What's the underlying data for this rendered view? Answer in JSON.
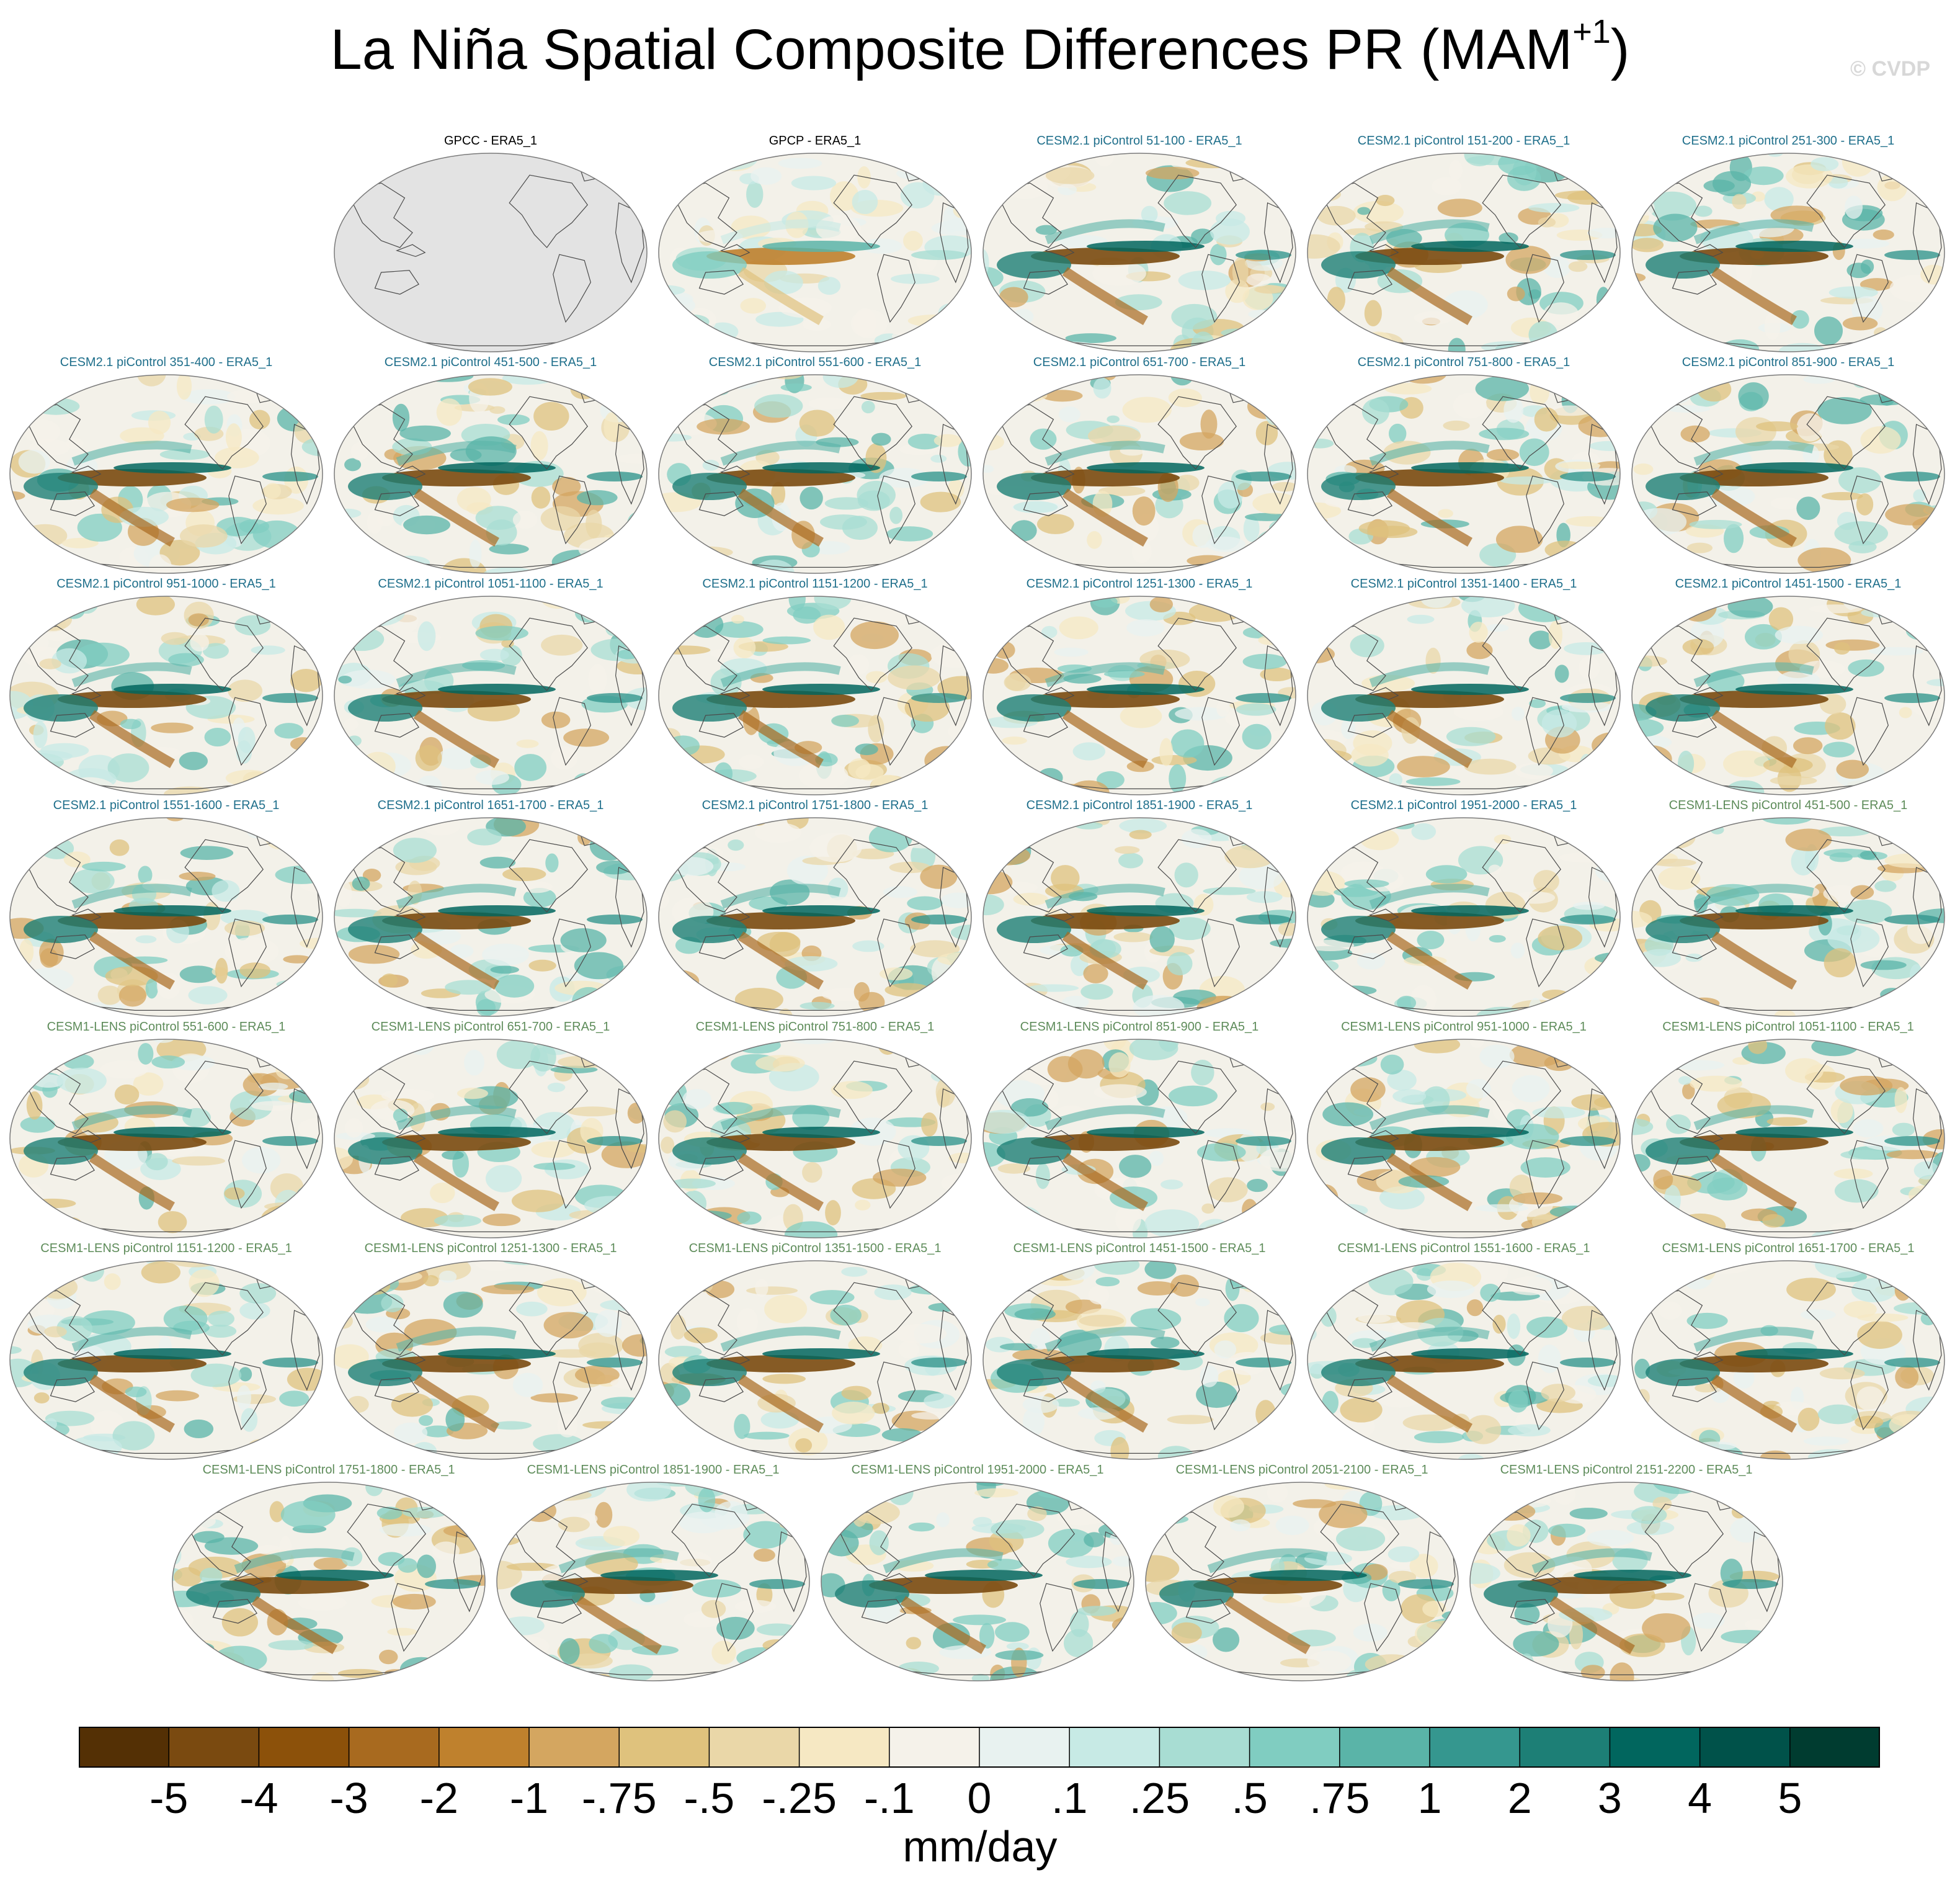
{
  "title": {
    "main": "La Niña Spatial Composite Differences PR (MAM",
    "superscript": "+1",
    "close": ")"
  },
  "watermark": "© CVDP",
  "colors": {
    "gpcp_group": "#000000",
    "cesm2_group": "#1f6f8b",
    "cesm1_group": "#5e8c5a",
    "missing_fill": "#e3e3e3",
    "coastline": "#4a4a4a"
  },
  "panels": [
    {
      "label": "GPCC - ERA5_1",
      "group": "obs",
      "blank": true
    },
    {
      "label": "GPCP - ERA5_1",
      "group": "obs"
    },
    {
      "label": "CESM2.1 piControl 51-100 - ERA5_1",
      "group": "cesm2"
    },
    {
      "label": "CESM2.1 piControl 151-200 - ERA5_1",
      "group": "cesm2"
    },
    {
      "label": "CESM2.1 piControl 251-300 - ERA5_1",
      "group": "cesm2"
    },
    {
      "label": "CESM2.1 piControl 351-400 - ERA5_1",
      "group": "cesm2"
    },
    {
      "label": "CESM2.1 piControl 451-500 - ERA5_1",
      "group": "cesm2"
    },
    {
      "label": "CESM2.1 piControl 551-600 - ERA5_1",
      "group": "cesm2"
    },
    {
      "label": "CESM2.1 piControl 651-700 - ERA5_1",
      "group": "cesm2"
    },
    {
      "label": "CESM2.1 piControl 751-800 - ERA5_1",
      "group": "cesm2"
    },
    {
      "label": "CESM2.1 piControl 851-900 - ERA5_1",
      "group": "cesm2"
    },
    {
      "label": "CESM2.1 piControl 951-1000 - ERA5_1",
      "group": "cesm2"
    },
    {
      "label": "CESM2.1 piControl 1051-1100 - ERA5_1",
      "group": "cesm2"
    },
    {
      "label": "CESM2.1 piControl 1151-1200 - ERA5_1",
      "group": "cesm2"
    },
    {
      "label": "CESM2.1 piControl 1251-1300 - ERA5_1",
      "group": "cesm2"
    },
    {
      "label": "CESM2.1 piControl 1351-1400 - ERA5_1",
      "group": "cesm2"
    },
    {
      "label": "CESM2.1 piControl 1451-1500 - ERA5_1",
      "group": "cesm2"
    },
    {
      "label": "CESM2.1 piControl 1551-1600 - ERA5_1",
      "group": "cesm2"
    },
    {
      "label": "CESM2.1 piControl 1651-1700 - ERA5_1",
      "group": "cesm2"
    },
    {
      "label": "CESM2.1 piControl 1751-1800 - ERA5_1",
      "group": "cesm2"
    },
    {
      "label": "CESM2.1 piControl 1851-1900 - ERA5_1",
      "group": "cesm2"
    },
    {
      "label": "CESM2.1 piControl 1951-2000 - ERA5_1",
      "group": "cesm2"
    },
    {
      "label": "CESM1-LENS piControl 451-500 - ERA5_1",
      "group": "cesm1"
    },
    {
      "label": "CESM1-LENS piControl 551-600 - ERA5_1",
      "group": "cesm1"
    },
    {
      "label": "CESM1-LENS piControl 651-700 - ERA5_1",
      "group": "cesm1"
    },
    {
      "label": "CESM1-LENS piControl 751-800 - ERA5_1",
      "group": "cesm1"
    },
    {
      "label": "CESM1-LENS piControl 851-900 - ERA5_1",
      "group": "cesm1"
    },
    {
      "label": "CESM1-LENS piControl 951-1000 - ERA5_1",
      "group": "cesm1"
    },
    {
      "label": "CESM1-LENS piControl 1051-1100 - ERA5_1",
      "group": "cesm1"
    },
    {
      "label": "CESM1-LENS piControl 1151-1200 - ERA5_1",
      "group": "cesm1"
    },
    {
      "label": "CESM1-LENS piControl 1251-1300 - ERA5_1",
      "group": "cesm1"
    },
    {
      "label": "CESM1-LENS piControl 1351-1500 - ERA5_1",
      "group": "cesm1"
    },
    {
      "label": "CESM1-LENS piControl 1451-1500 - ERA5_1",
      "group": "cesm1"
    },
    {
      "label": "CESM1-LENS piControl 1551-1600 - ERA5_1",
      "group": "cesm1"
    },
    {
      "label": "CESM1-LENS piControl 1651-1700 - ERA5_1",
      "group": "cesm1"
    },
    {
      "label": "CESM1-LENS piControl 1751-1800 - ERA5_1",
      "group": "cesm1"
    },
    {
      "label": "CESM1-LENS piControl 1851-1900 - ERA5_1",
      "group": "cesm1"
    },
    {
      "label": "CESM1-LENS piControl 1951-2000 - ERA5_1",
      "group": "cesm1"
    },
    {
      "label": "CESM1-LENS piControl 2051-2100 - ERA5_1",
      "group": "cesm1"
    },
    {
      "label": "CESM1-LENS piControl 2151-2200 - ERA5_1",
      "group": "cesm1"
    }
  ],
  "colorbar": {
    "tick_labels": [
      "-5",
      "-4",
      "-3",
      "-2",
      "-1",
      "-.75",
      "-.5",
      "-.25",
      "-.1",
      "0",
      ".1",
      ".25",
      ".5",
      ".75",
      "1",
      "2",
      "3",
      "4",
      "5"
    ],
    "colors": [
      "#543005",
      "#7a4a10",
      "#8c510a",
      "#a86a1f",
      "#bf812d",
      "#d4a660",
      "#dfc27d",
      "#ead7a8",
      "#f6e8c3",
      "#f5f2ea",
      "#e8f2f0",
      "#c7eae5",
      "#a8ddd3",
      "#80cdc1",
      "#5ab4a8",
      "#35978f",
      "#1d7f76",
      "#01665e",
      "#00524a",
      "#003c30"
    ],
    "units": "mm/day"
  }
}
